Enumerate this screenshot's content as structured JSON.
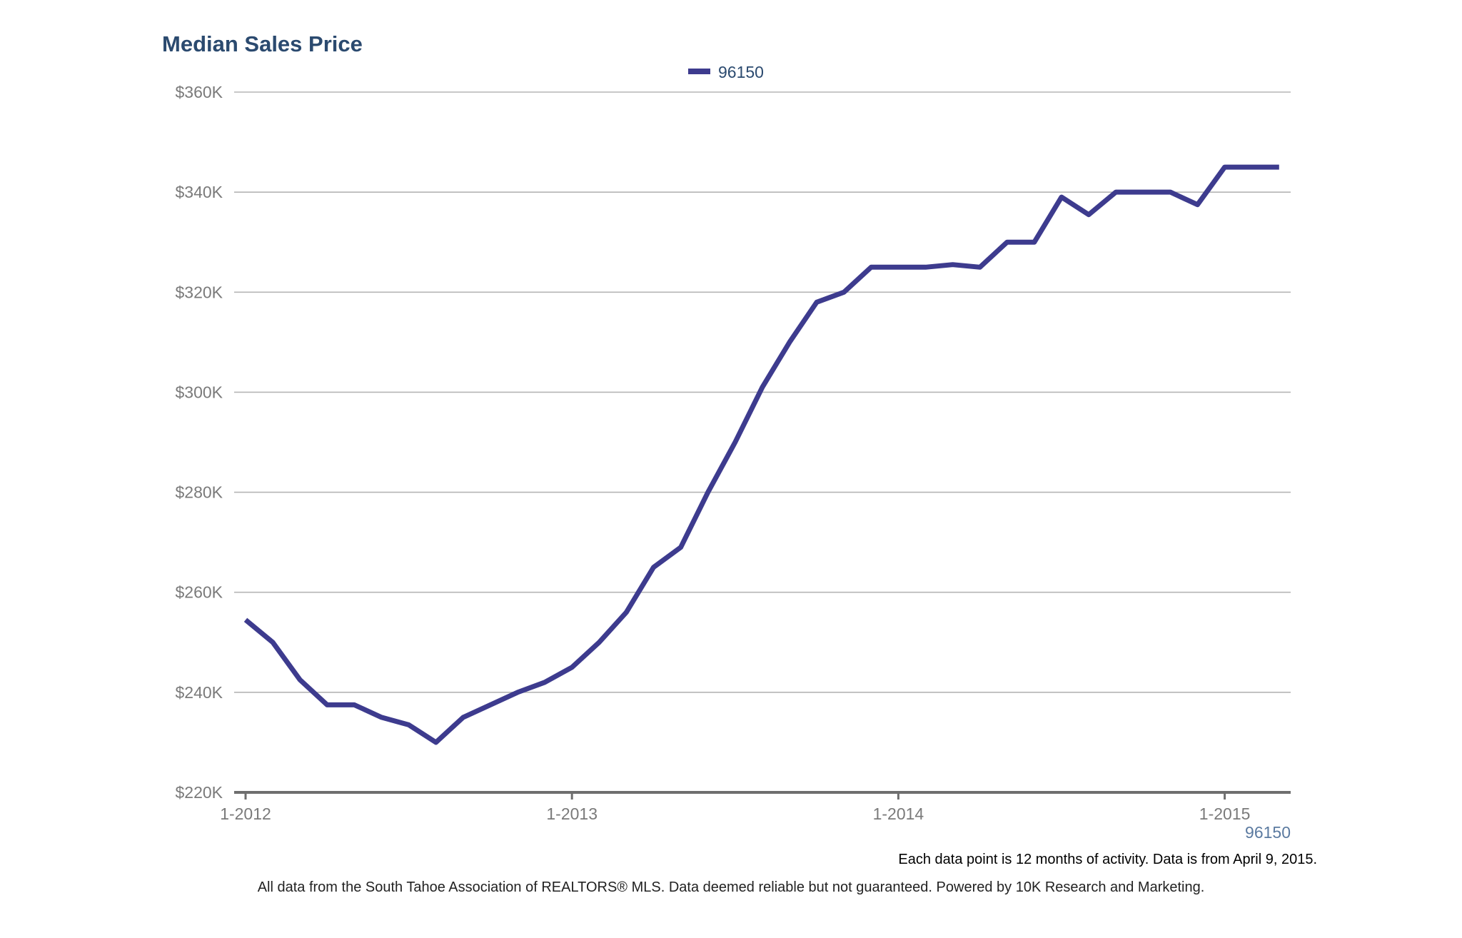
{
  "chart_data": {
    "type": "line",
    "title": "Median Sales Price",
    "xlabel": "",
    "ylabel": "",
    "ylim": [
      220000,
      360000
    ],
    "yticks": [
      220000,
      240000,
      260000,
      280000,
      300000,
      320000,
      340000,
      360000
    ],
    "ytick_labels": [
      "$220K",
      "$240K",
      "$260K",
      "$280K",
      "$300K",
      "$320K",
      "$340K",
      "$360K"
    ],
    "xticks": [
      "1-2012",
      "1-2013",
      "1-2014",
      "1-2015"
    ],
    "x_axis_series_label": "96150",
    "grid": true,
    "legend": {
      "placement": "top-center",
      "entries": [
        "96150"
      ]
    },
    "series": [
      {
        "name": "96150",
        "color": "#3d3b8e",
        "x": [
          "2012-01",
          "2012-02",
          "2012-03",
          "2012-04",
          "2012-05",
          "2012-06",
          "2012-07",
          "2012-08",
          "2012-09",
          "2012-10",
          "2012-11",
          "2012-12",
          "2013-01",
          "2013-02",
          "2013-03",
          "2013-04",
          "2013-05",
          "2013-06",
          "2013-07",
          "2013-08",
          "2013-09",
          "2013-10",
          "2013-11",
          "2013-12",
          "2014-01",
          "2014-02",
          "2014-03",
          "2014-04",
          "2014-05",
          "2014-06",
          "2014-07",
          "2014-08",
          "2014-09",
          "2014-10",
          "2014-11",
          "2014-12",
          "2015-01",
          "2015-02",
          "2015-03"
        ],
        "values": [
          254500,
          250000,
          242500,
          237500,
          237500,
          235000,
          233500,
          230000,
          235000,
          237500,
          240000,
          242000,
          245000,
          250000,
          256000,
          265000,
          269000,
          280000,
          290000,
          301000,
          310000,
          318000,
          320000,
          325000,
          325000,
          325000,
          325500,
          325000,
          330000,
          330000,
          339000,
          335500,
          340000,
          340000,
          340000,
          337500,
          345000,
          345000,
          345000
        ]
      }
    ]
  },
  "footnotes": {
    "activity_note": "Each data point is 12 months of activity. Data is from April 9, 2015.",
    "source_note": "All data from the South Tahoe Association of REALTORS® MLS. Data deemed reliable but not guaranteed. Powered by 10K Research and Marketing."
  },
  "colors": {
    "title": "#2b4a6f",
    "line": "#3d3b8e",
    "grid": "#b5b5b5",
    "axis": "#6e6e6e",
    "tick_text": "#7a7a7a",
    "series_label": "#5b7aa0",
    "note_text": "#000000",
    "source_text": "#222222"
  }
}
